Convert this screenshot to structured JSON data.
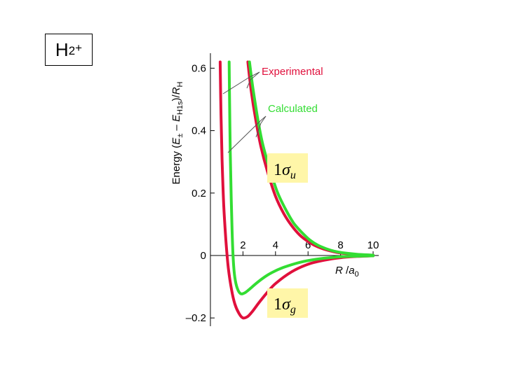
{
  "slide": {
    "label_main": "H",
    "label_sub": "2",
    "label_sup": "+"
  },
  "colors": {
    "experimental": "#e0103c",
    "calculated": "#33dd33",
    "axis": "#000000",
    "label_box": "#fff6a8",
    "pointer": "#555555"
  },
  "chart_data": {
    "type": "line",
    "ylabel_parts": [
      "Energy  (",
      "E",
      "±",
      " –  ",
      "E",
      "H1s",
      ")/",
      "R",
      "H"
    ],
    "xlabel_parts": [
      "R",
      " /",
      "a",
      "0"
    ],
    "xlim": [
      0,
      10
    ],
    "ylim": [
      -0.2,
      0.6
    ],
    "x_ticks": [
      2,
      4,
      6,
      8,
      10
    ],
    "y_ticks": [
      -0.2,
      0,
      0.2,
      0.4,
      0.6
    ],
    "y_tick_labels": [
      "–0.2",
      "0",
      "0.2",
      "0.4",
      "0.6"
    ],
    "legend": {
      "experimental": "Experimental",
      "calculated": "Calculated"
    },
    "curve_labels": [
      {
        "num": "1",
        "greek": "σ",
        "sub": "u"
      },
      {
        "num": "1",
        "greek": "σ",
        "sub": "g"
      }
    ],
    "series": [
      {
        "name": "Experimental",
        "state": "1σu",
        "x": [
          2.3,
          2.5,
          2.8,
          3.1,
          3.5,
          4.0,
          4.5,
          5.0,
          5.5,
          6.0,
          6.5,
          7.0,
          7.5,
          8.0,
          9.0,
          10.0
        ],
        "y": [
          0.62,
          0.53,
          0.43,
          0.35,
          0.27,
          0.19,
          0.135,
          0.095,
          0.065,
          0.045,
          0.03,
          0.02,
          0.013,
          0.008,
          0.003,
          0.001
        ]
      },
      {
        "name": "Calculated",
        "state": "1σu",
        "x": [
          2.4,
          2.6,
          2.9,
          3.2,
          3.6,
          4.1,
          4.6,
          5.1,
          5.6,
          6.1,
          6.6,
          7.1,
          7.6,
          8.1,
          9.0,
          10.0
        ],
        "y": [
          0.62,
          0.54,
          0.44,
          0.36,
          0.285,
          0.205,
          0.15,
          0.105,
          0.075,
          0.05,
          0.033,
          0.022,
          0.014,
          0.009,
          0.004,
          0.001
        ]
      },
      {
        "name": "Experimental",
        "state": "1σg",
        "x": [
          0.6,
          0.65,
          0.72,
          0.82,
          0.95,
          1.1,
          1.3,
          1.5,
          1.75,
          2.0,
          2.3,
          2.6,
          3.0,
          3.5,
          4.0,
          5.0,
          6.0,
          7.0,
          8.0,
          9.0,
          10.0
        ],
        "y": [
          0.62,
          0.45,
          0.3,
          0.16,
          0.05,
          -0.04,
          -0.11,
          -0.155,
          -0.185,
          -0.2,
          -0.195,
          -0.178,
          -0.15,
          -0.118,
          -0.09,
          -0.052,
          -0.028,
          -0.015,
          -0.007,
          -0.003,
          -0.001
        ]
      },
      {
        "name": "Calculated",
        "state": "1σg",
        "x": [
          1.15,
          1.18,
          1.22,
          1.27,
          1.33,
          1.4,
          1.5,
          1.65,
          1.85,
          2.1,
          2.4,
          2.8,
          3.3,
          3.8,
          4.5,
          5.5,
          6.5,
          7.5,
          8.5,
          10.0
        ],
        "y": [
          0.62,
          0.48,
          0.33,
          0.2,
          0.08,
          -0.01,
          -0.07,
          -0.105,
          -0.122,
          -0.12,
          -0.108,
          -0.09,
          -0.07,
          -0.054,
          -0.038,
          -0.022,
          -0.012,
          -0.006,
          -0.003,
          -0.001
        ]
      }
    ]
  }
}
